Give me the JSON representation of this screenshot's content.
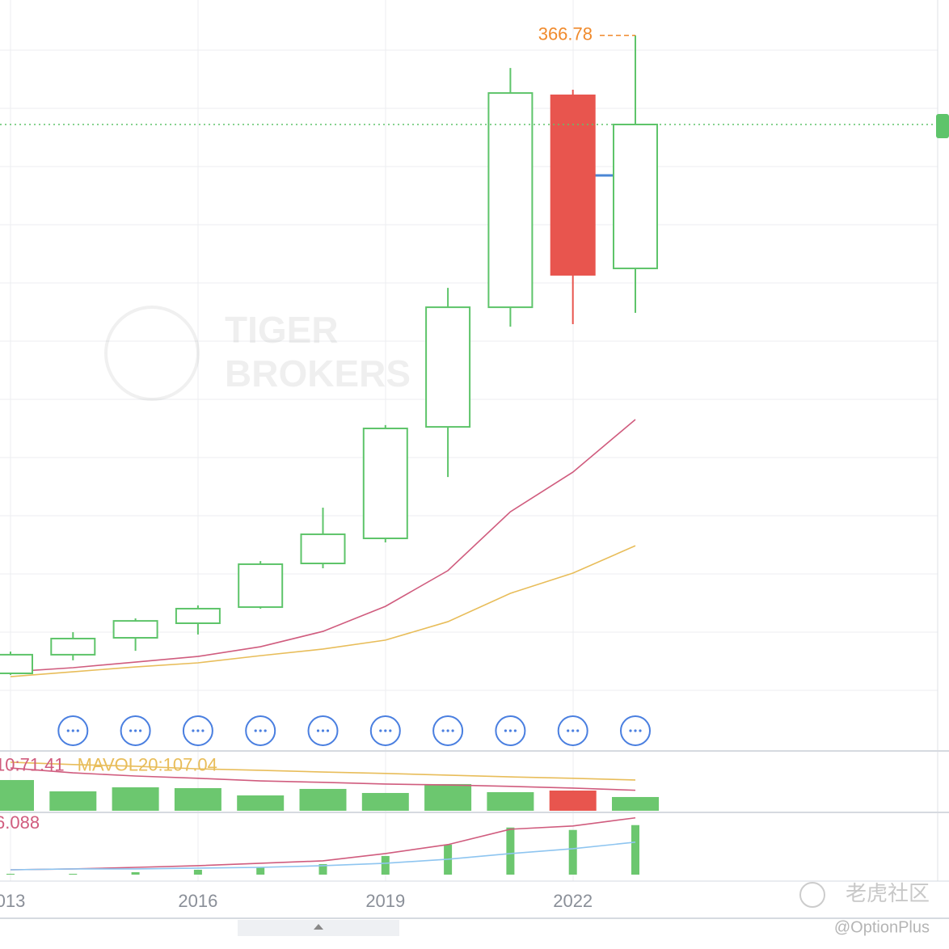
{
  "chart_data": [
    {
      "type": "candlestick",
      "categories": [
        "013",
        null,
        null,
        "2016",
        null,
        null,
        "2019",
        null,
        null,
        "2022",
        null
      ],
      "open": [
        38.3,
        47.9,
        56.6,
        64.1,
        72.4,
        94.9,
        107.8,
        165.2,
        226.8,
        335.9,
        246.8
      ],
      "high": [
        49.5,
        59.5,
        66.6,
        73.3,
        96.1,
        123.6,
        166.1,
        236.8,
        350.0,
        338.8,
        366.78
      ],
      "low": [
        37.5,
        45.0,
        49.9,
        58.3,
        71.6,
        92.4,
        105.7,
        139.4,
        216.8,
        218.1,
        223.9
      ],
      "close": [
        47.9,
        56.2,
        65.3,
        71.6,
        94.5,
        109.9,
        164.4,
        226.8,
        337.1,
        243.5,
        320.9
      ],
      "up_color": "#5ec46a",
      "down_color": "#e8554e",
      "high_label": "366.78",
      "ylim": [
        0,
        385
      ],
      "lines": [
        {
          "color": "#d05c7e",
          "values": [
            39.1,
            41.2,
            44.1,
            47.0,
            52.0,
            59.9,
            72.8,
            91.2,
            121.5,
            141.9,
            169.0
          ]
        },
        {
          "color": "#e8bd5a",
          "values": [
            36.6,
            39.1,
            41.6,
            43.7,
            47.4,
            50.8,
            55.4,
            64.9,
            79.5,
            89.9,
            104.0
          ]
        }
      ]
    },
    {
      "type": "bar",
      "values": [
        107.0,
        67.6,
        81.7,
        78.9,
        53.5,
        76.1,
        62.0,
        93.0,
        64.8,
        70.4,
        47.9
      ],
      "colors": [
        "#6cc76f",
        "#6cc76f",
        "#6cc76f",
        "#6cc76f",
        "#6cc76f",
        "#6cc76f",
        "#6cc76f",
        "#6cc76f",
        "#6cc76f",
        "#e8554e",
        "#6cc76f"
      ],
      "ylim": [
        0,
        190
      ],
      "lines": [
        {
          "label": "10:71.41",
          "color": "#d05c7e",
          "values": [
            149,
            132,
            121,
            113,
            104,
            99,
            93,
            90,
            85,
            79,
            71.41
          ]
        },
        {
          "label": "MAVOL20:107.04",
          "color": "#e8bd5a",
          "values": [
            169,
            161,
            155,
            146,
            141,
            135,
            130,
            124,
            118,
            113,
            107.04
          ]
        }
      ]
    },
    {
      "type": "bar",
      "values": [
        0.09,
        0.09,
        0.26,
        0.52,
        0.78,
        1.13,
        2.0,
        3.22,
        5.05,
        4.79,
        5.31
      ],
      "colors": [
        "#6cc76f",
        "#6cc76f",
        "#6cc76f",
        "#6cc76f",
        "#6cc76f",
        "#6cc76f",
        "#6cc76f",
        "#6cc76f",
        "#6cc76f",
        "#6cc76f",
        "#6cc76f"
      ],
      "ylim": [
        0,
        6.5
      ],
      "lines": [
        {
          "label": "6.088",
          "color": "#d05c7e",
          "values": [
            0.52,
            0.61,
            0.78,
            0.96,
            1.22,
            1.48,
            2.26,
            3.22,
            4.87,
            5.22,
            6.088
          ]
        },
        {
          "color": "#8ec5f0",
          "values": [
            0.52,
            0.61,
            0.61,
            0.7,
            0.78,
            0.96,
            1.22,
            1.65,
            2.26,
            2.78,
            3.48
          ]
        }
      ]
    }
  ],
  "watermarks": {
    "brand_top": "TIGER",
    "brand_bottom": "BROKERS",
    "community": "老虎社区",
    "author": "@OptionPlus"
  }
}
